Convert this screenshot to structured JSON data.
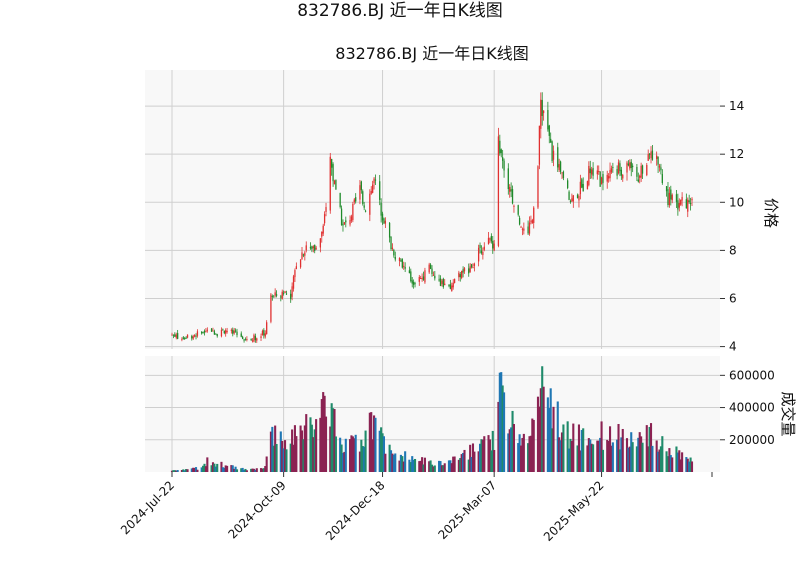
{
  "figure": {
    "suptitle": "832786.BJ 近一年日K线图"
  },
  "chart_data": {
    "type": "candlestick",
    "title": "832786.BJ 近一年日K线图",
    "price_axis": {
      "label": "价格",
      "ylim": [
        3.9,
        15.5
      ],
      "ticks": [
        4,
        6,
        8,
        10,
        12,
        14
      ],
      "tick_labels": [
        "4",
        "6",
        "8",
        "10",
        "12",
        "14"
      ],
      "side": "right"
    },
    "volume_axis": {
      "label": "成交量",
      "ylim": [
        0,
        720000
      ],
      "ticks": [
        200000,
        400000,
        600000
      ],
      "tick_labels": [
        "200000",
        "400000",
        "600000"
      ],
      "side": "right"
    },
    "x_axis": {
      "start_date": "2024-07-22",
      "end_date": "2025-07-25",
      "tick_dates": [
        "2024-07-22",
        "2024-10-09",
        "2024-12-18",
        "2025-03-07",
        "2025-05-22"
      ],
      "tick_labels": [
        "2024-Jul-22",
        "2024-Oct-09",
        "2024-Dec-18",
        "2025-Mar-07",
        "2025-May-22"
      ]
    },
    "grid": true,
    "colors": {
      "up": "#e03030",
      "down": "#1f8a2a",
      "volume_up": "#8b2252",
      "volume_down_1": "#1f77b4",
      "volume_down_2": "#1f8a6a",
      "grid": "#cfcfcf",
      "panel_bg": "#f8f8f8"
    },
    "price_anchors": [
      [
        "2024-07-22",
        4.5
      ],
      [
        "2024-07-29",
        4.4
      ],
      [
        "2024-08-05",
        4.45
      ],
      [
        "2024-08-12",
        4.6
      ],
      [
        "2024-08-16",
        4.8
      ],
      [
        "2024-08-23",
        4.55
      ],
      [
        "2024-08-29",
        4.7
      ],
      [
        "2024-09-05",
        4.5
      ],
      [
        "2024-09-12",
        4.35
      ],
      [
        "2024-09-20",
        4.4
      ],
      [
        "2024-09-26",
        4.6
      ],
      [
        "2024-09-30",
        6.0
      ],
      [
        "2024-10-09",
        6.3
      ],
      [
        "2024-10-14",
        6.0
      ],
      [
        "2024-10-18",
        7.5
      ],
      [
        "2024-10-25",
        8.2
      ],
      [
        "2024-10-31",
        8.0
      ],
      [
        "2024-11-06",
        8.8
      ],
      [
        "2024-11-11",
        11.8
      ],
      [
        "2024-11-15",
        10.3
      ],
      [
        "2024-11-20",
        9.0
      ],
      [
        "2024-11-26",
        9.5
      ],
      [
        "2024-12-02",
        10.5
      ],
      [
        "2024-12-06",
        9.8
      ],
      [
        "2024-12-12",
        10.9
      ],
      [
        "2024-12-18",
        9.5
      ],
      [
        "2024-12-24",
        8.2
      ],
      [
        "2024-12-31",
        7.4
      ],
      [
        "2025-01-08",
        6.7
      ],
      [
        "2025-01-14",
        6.8
      ],
      [
        "2025-01-20",
        7.3
      ],
      [
        "2025-01-27",
        6.7
      ],
      [
        "2025-02-05",
        6.5
      ],
      [
        "2025-02-11",
        7.0
      ],
      [
        "2025-02-18",
        7.3
      ],
      [
        "2025-02-24",
        8.0
      ],
      [
        "2025-03-03",
        8.4
      ],
      [
        "2025-03-07",
        8.3
      ],
      [
        "2025-03-10",
        12.5
      ],
      [
        "2025-03-14",
        11.5
      ],
      [
        "2025-03-19",
        10.2
      ],
      [
        "2025-03-25",
        9.2
      ],
      [
        "2025-03-31",
        8.6
      ],
      [
        "2025-04-03",
        9.5
      ],
      [
        "2025-04-07",
        11.5
      ],
      [
        "2025-04-09",
        14.2
      ],
      [
        "2025-04-14",
        12.8
      ],
      [
        "2025-04-18",
        11.8
      ],
      [
        "2025-04-24",
        11.0
      ],
      [
        "2025-04-30",
        10.0
      ],
      [
        "2025-05-09",
        10.7
      ],
      [
        "2025-05-15",
        11.5
      ],
      [
        "2025-05-22",
        10.8
      ],
      [
        "2025-05-28",
        11.5
      ],
      [
        "2025-06-04",
        11.3
      ],
      [
        "2025-06-11",
        11.6
      ],
      [
        "2025-06-17",
        11.0
      ],
      [
        "2025-06-23",
        11.8
      ],
      [
        "2025-06-27",
        12.0
      ],
      [
        "2025-07-02",
        11.5
      ],
      [
        "2025-07-07",
        10.2
      ],
      [
        "2025-07-14",
        9.9
      ],
      [
        "2025-07-18",
        10.0
      ],
      [
        "2025-07-25",
        9.9
      ]
    ],
    "volume_anchors": [
      [
        "2024-07-22",
        10000
      ],
      [
        "2024-08-12",
        25000
      ],
      [
        "2024-08-16",
        70000
      ],
      [
        "2024-08-29",
        40000
      ],
      [
        "2024-09-12",
        15000
      ],
      [
        "2024-09-26",
        30000
      ],
      [
        "2024-09-30",
        240000
      ],
      [
        "2024-10-09",
        190000
      ],
      [
        "2024-10-18",
        280000
      ],
      [
        "2024-10-31",
        320000
      ],
      [
        "2024-11-11",
        420000
      ],
      [
        "2024-11-20",
        140000
      ],
      [
        "2024-12-02",
        200000
      ],
      [
        "2024-12-12",
        300000
      ],
      [
        "2024-12-18",
        180000
      ],
      [
        "2024-12-31",
        100000
      ],
      [
        "2025-01-14",
        70000
      ],
      [
        "2025-01-27",
        50000
      ],
      [
        "2025-02-11",
        80000
      ],
      [
        "2025-02-24",
        160000
      ],
      [
        "2025-03-07",
        210000
      ],
      [
        "2025-03-10",
        520000
      ],
      [
        "2025-03-19",
        300000
      ],
      [
        "2025-03-31",
        160000
      ],
      [
        "2025-04-07",
        380000
      ],
      [
        "2025-04-10",
        600000
      ],
      [
        "2025-04-18",
        360000
      ],
      [
        "2025-04-30",
        220000
      ],
      [
        "2025-05-15",
        210000
      ],
      [
        "2025-05-28",
        240000
      ],
      [
        "2025-06-11",
        180000
      ],
      [
        "2025-06-27",
        230000
      ],
      [
        "2025-07-07",
        160000
      ],
      [
        "2025-07-18",
        100000
      ],
      [
        "2025-07-25",
        90000
      ]
    ]
  }
}
